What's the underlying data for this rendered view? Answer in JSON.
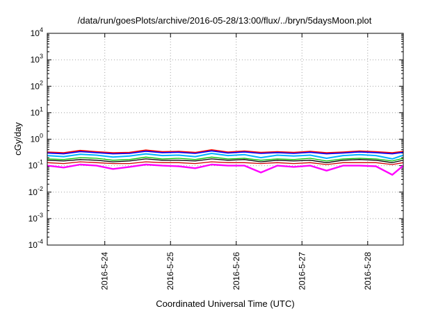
{
  "chart_data": {
    "type": "line",
    "title": "/data/run/goesPlots/archive/2016-05-28/13:00/flux/../bryn/5daysMoon.plot",
    "xlabel": "Coordinated Universal Time (UTC)",
    "ylabel": "cGy/day",
    "x_scale": "time",
    "xlim": [
      "2016-05-23T03:00",
      "2016-05-28T13:00"
    ],
    "x_ticks": [
      {
        "date": "2016-05-24T00:00",
        "label": "2016-5-24"
      },
      {
        "date": "2016-05-25T00:00",
        "label": "2016-5-25"
      },
      {
        "date": "2016-05-26T00:00",
        "label": "2016-5-26"
      },
      {
        "date": "2016-05-27T00:00",
        "label": "2016-5-27"
      },
      {
        "date": "2016-05-28T00:00",
        "label": "2016-5-28"
      }
    ],
    "y_scale": "log",
    "ylim": [
      0.0001,
      10000
    ],
    "y_ticks": [
      {
        "value": 10000,
        "base": "10",
        "exp": "4"
      },
      {
        "value": 1000,
        "base": "10",
        "exp": "3"
      },
      {
        "value": 100,
        "base": "10",
        "exp": "2"
      },
      {
        "value": 10,
        "base": "10",
        "exp": "1"
      },
      {
        "value": 1,
        "base": "10",
        "exp": "0"
      },
      {
        "value": 0.1,
        "base": "10",
        "exp": "-1"
      },
      {
        "value": 0.01,
        "base": "10",
        "exp": "-2"
      },
      {
        "value": 0.001,
        "base": "10",
        "exp": "-3"
      },
      {
        "value": 0.0001,
        "base": "10",
        "exp": "-4"
      }
    ],
    "grid": true,
    "legend": "none",
    "series": [
      {
        "color": "#ff0000",
        "width": 2.2,
        "x": [
          "2016-05-23T03:00",
          "2016-05-23T09:00",
          "2016-05-23T15:00",
          "2016-05-23T21:00",
          "2016-05-24T03:00",
          "2016-05-24T09:00",
          "2016-05-24T15:00",
          "2016-05-24T21:00",
          "2016-05-25T03:00",
          "2016-05-25T09:00",
          "2016-05-25T15:00",
          "2016-05-25T21:00",
          "2016-05-26T03:00",
          "2016-05-26T09:00",
          "2016-05-26T15:00",
          "2016-05-26T21:00",
          "2016-05-27T03:00",
          "2016-05-27T09:00",
          "2016-05-27T15:00",
          "2016-05-27T21:00",
          "2016-05-28T03:00",
          "2016-05-28T09:00",
          "2016-05-28T13:00"
        ],
        "y": [
          0.32,
          0.3,
          0.37,
          0.33,
          0.3,
          0.31,
          0.38,
          0.33,
          0.34,
          0.31,
          0.39,
          0.32,
          0.35,
          0.31,
          0.33,
          0.31,
          0.34,
          0.3,
          0.32,
          0.35,
          0.33,
          0.3,
          0.34
        ]
      },
      {
        "color": "#0000ff",
        "width": 1.6,
        "x": [
          "2016-05-23T03:00",
          "2016-05-23T09:00",
          "2016-05-23T15:00",
          "2016-05-23T21:00",
          "2016-05-24T03:00",
          "2016-05-24T09:00",
          "2016-05-24T15:00",
          "2016-05-24T21:00",
          "2016-05-25T03:00",
          "2016-05-25T09:00",
          "2016-05-25T15:00",
          "2016-05-25T21:00",
          "2016-05-26T03:00",
          "2016-05-26T09:00",
          "2016-05-26T15:00",
          "2016-05-26T21:00",
          "2016-05-27T03:00",
          "2016-05-27T09:00",
          "2016-05-27T15:00",
          "2016-05-27T21:00",
          "2016-05-28T03:00",
          "2016-05-28T09:00",
          "2016-05-28T13:00"
        ],
        "y": [
          0.3,
          0.28,
          0.34,
          0.31,
          0.28,
          0.29,
          0.35,
          0.31,
          0.32,
          0.29,
          0.36,
          0.3,
          0.33,
          0.29,
          0.31,
          0.29,
          0.32,
          0.28,
          0.3,
          0.33,
          0.31,
          0.28,
          0.32
        ]
      },
      {
        "color": "#00b0ff",
        "width": 2,
        "x": [
          "2016-05-23T03:00",
          "2016-05-23T09:00",
          "2016-05-23T15:00",
          "2016-05-23T21:00",
          "2016-05-24T03:00",
          "2016-05-24T09:00",
          "2016-05-24T15:00",
          "2016-05-24T21:00",
          "2016-05-25T03:00",
          "2016-05-25T09:00",
          "2016-05-25T15:00",
          "2016-05-25T21:00",
          "2016-05-26T03:00",
          "2016-05-26T09:00",
          "2016-05-26T15:00",
          "2016-05-26T21:00",
          "2016-05-27T03:00",
          "2016-05-27T09:00",
          "2016-05-27T15:00",
          "2016-05-27T21:00",
          "2016-05-28T03:00",
          "2016-05-28T09:00",
          "2016-05-28T13:00"
        ],
        "y": [
          0.24,
          0.22,
          0.27,
          0.25,
          0.21,
          0.23,
          0.28,
          0.24,
          0.25,
          0.22,
          0.29,
          0.24,
          0.26,
          0.2,
          0.25,
          0.23,
          0.25,
          0.19,
          0.24,
          0.26,
          0.24,
          0.18,
          0.25
        ]
      },
      {
        "color": "#00c000",
        "width": 1.3,
        "x": [
          "2016-05-23T03:00",
          "2016-05-23T09:00",
          "2016-05-23T15:00",
          "2016-05-23T21:00",
          "2016-05-24T03:00",
          "2016-05-24T09:00",
          "2016-05-24T15:00",
          "2016-05-24T21:00",
          "2016-05-25T03:00",
          "2016-05-25T09:00",
          "2016-05-25T15:00",
          "2016-05-25T21:00",
          "2016-05-26T03:00",
          "2016-05-26T09:00",
          "2016-05-26T15:00",
          "2016-05-26T21:00",
          "2016-05-27T03:00",
          "2016-05-27T09:00",
          "2016-05-27T15:00",
          "2016-05-27T21:00",
          "2016-05-28T03:00",
          "2016-05-28T09:00",
          "2016-05-28T13:00"
        ],
        "y": [
          0.18,
          0.17,
          0.2,
          0.19,
          0.16,
          0.17,
          0.21,
          0.18,
          0.19,
          0.17,
          0.21,
          0.18,
          0.19,
          0.16,
          0.18,
          0.17,
          0.19,
          0.15,
          0.18,
          0.19,
          0.18,
          0.15,
          0.19
        ]
      },
      {
        "color": "#000000",
        "width": 1.3,
        "x": [
          "2016-05-23T03:00",
          "2016-05-23T09:00",
          "2016-05-23T15:00",
          "2016-05-23T21:00",
          "2016-05-24T03:00",
          "2016-05-24T09:00",
          "2016-05-24T15:00",
          "2016-05-24T21:00",
          "2016-05-25T03:00",
          "2016-05-25T09:00",
          "2016-05-25T15:00",
          "2016-05-25T21:00",
          "2016-05-26T03:00",
          "2016-05-26T09:00",
          "2016-05-26T15:00",
          "2016-05-26T21:00",
          "2016-05-27T03:00",
          "2016-05-27T09:00",
          "2016-05-27T15:00",
          "2016-05-27T21:00",
          "2016-05-28T03:00",
          "2016-05-28T09:00",
          "2016-05-28T13:00"
        ],
        "y": [
          0.16,
          0.15,
          0.17,
          0.16,
          0.14,
          0.15,
          0.18,
          0.16,
          0.16,
          0.15,
          0.18,
          0.16,
          0.17,
          0.14,
          0.16,
          0.15,
          0.16,
          0.13,
          0.16,
          0.17,
          0.16,
          0.13,
          0.16
        ]
      },
      {
        "color": "#d00000",
        "width": 1.3,
        "x": [
          "2016-05-23T03:00",
          "2016-05-23T09:00",
          "2016-05-23T15:00",
          "2016-05-23T21:00",
          "2016-05-24T03:00",
          "2016-05-24T09:00",
          "2016-05-24T15:00",
          "2016-05-24T21:00",
          "2016-05-25T03:00",
          "2016-05-25T09:00",
          "2016-05-25T15:00",
          "2016-05-25T21:00",
          "2016-05-26T03:00",
          "2016-05-26T09:00",
          "2016-05-26T15:00",
          "2016-05-26T21:00",
          "2016-05-27T03:00",
          "2016-05-27T09:00",
          "2016-05-27T15:00",
          "2016-05-27T21:00",
          "2016-05-28T03:00",
          "2016-05-28T09:00",
          "2016-05-28T13:00"
        ],
        "y": [
          0.13,
          0.12,
          0.14,
          0.13,
          0.12,
          0.12,
          0.14,
          0.13,
          0.13,
          0.12,
          0.14,
          0.13,
          0.13,
          0.12,
          0.13,
          0.12,
          0.13,
          0.11,
          0.13,
          0.13,
          0.13,
          0.11,
          0.13
        ]
      },
      {
        "color": "#ff00ff",
        "width": 2.4,
        "x": [
          "2016-05-23T03:00",
          "2016-05-23T09:00",
          "2016-05-23T15:00",
          "2016-05-23T21:00",
          "2016-05-24T03:00",
          "2016-05-24T09:00",
          "2016-05-24T15:00",
          "2016-05-24T21:00",
          "2016-05-25T03:00",
          "2016-05-25T09:00",
          "2016-05-25T15:00",
          "2016-05-25T21:00",
          "2016-05-26T03:00",
          "2016-05-26T09:00",
          "2016-05-26T15:00",
          "2016-05-26T21:00",
          "2016-05-27T03:00",
          "2016-05-27T09:00",
          "2016-05-27T15:00",
          "2016-05-27T21:00",
          "2016-05-28T03:00",
          "2016-05-28T09:00",
          "2016-05-28T13:00"
        ],
        "y": [
          0.1,
          0.085,
          0.11,
          0.1,
          0.075,
          0.09,
          0.11,
          0.1,
          0.095,
          0.08,
          0.11,
          0.1,
          0.1,
          0.055,
          0.1,
          0.09,
          0.1,
          0.065,
          0.1,
          0.1,
          0.095,
          0.045,
          0.1
        ]
      }
    ]
  }
}
